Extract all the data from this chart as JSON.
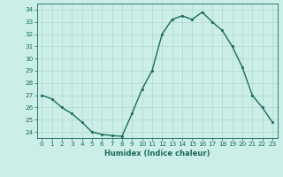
{
  "x": [
    0,
    1,
    2,
    3,
    4,
    5,
    6,
    7,
    8,
    9,
    10,
    11,
    12,
    13,
    14,
    15,
    16,
    17,
    18,
    19,
    20,
    21,
    22,
    23
  ],
  "y": [
    27.0,
    26.7,
    26.0,
    25.5,
    24.8,
    24.0,
    23.8,
    23.7,
    23.65,
    25.5,
    27.5,
    29.0,
    32.0,
    33.2,
    33.5,
    33.2,
    33.8,
    33.0,
    32.3,
    31.0,
    29.3,
    27.0,
    26.0,
    24.8
  ],
  "xlabel": "Humidex (Indice chaleur)",
  "xlim": [
    -0.5,
    23.5
  ],
  "ylim": [
    23.5,
    34.5
  ],
  "yticks": [
    24,
    25,
    26,
    27,
    28,
    29,
    30,
    31,
    32,
    33,
    34
  ],
  "xticks": [
    0,
    1,
    2,
    3,
    4,
    5,
    6,
    7,
    8,
    9,
    10,
    11,
    12,
    13,
    14,
    15,
    16,
    17,
    18,
    19,
    20,
    21,
    22,
    23
  ],
  "line_color": "#1a6b5a",
  "marker_color": "#1a6b5a",
  "bg_color": "#cceee8",
  "grid_color": "#b0d8cf",
  "label_color": "#1a6b5a",
  "tick_color": "#1a6b5a"
}
